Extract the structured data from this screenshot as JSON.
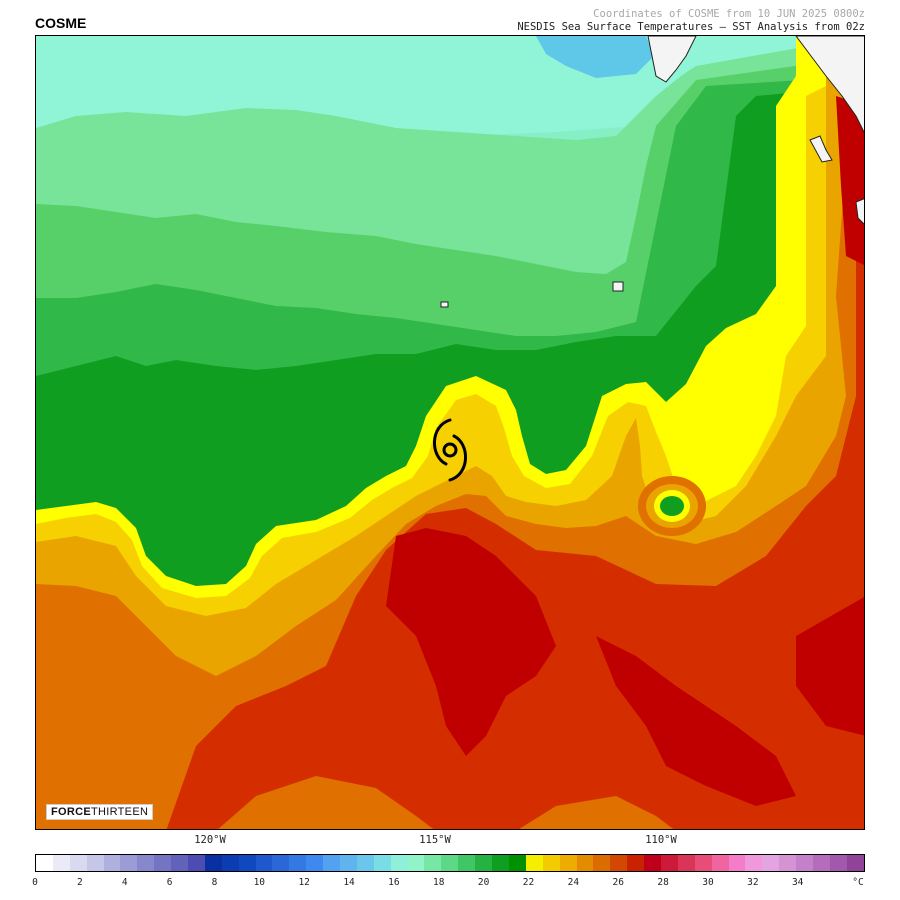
{
  "storm_name": "COSME",
  "header": {
    "line1": "Coordinates of COSME from 10 JUN 2025 0800z",
    "line2": "NESDIS Sea Surface Temperatures – SST Analysis from 02z"
  },
  "logo": {
    "bold": "FORCE",
    "light": "THIRTEEN"
  },
  "longitude_labels": [
    "120°W",
    "115°W",
    "110°W"
  ],
  "colorbar": {
    "unit": "°C",
    "tick_labels": [
      "0",
      "2",
      "4",
      "6",
      "8",
      "10",
      "12",
      "14",
      "16",
      "18",
      "20",
      "22",
      "24",
      "26",
      "28",
      "30",
      "32",
      "34"
    ],
    "colors": [
      "#ffffff",
      "#ebebf7",
      "#d9d9f0",
      "#c6c6e8",
      "#b0b0df",
      "#9b9bd6",
      "#8787cc",
      "#7474c2",
      "#6262b8",
      "#4c4cb2",
      "#0a2fa0",
      "#0c3cb2",
      "#1048c0",
      "#1e58cc",
      "#2a68d8",
      "#3478e4",
      "#3f89ee",
      "#52a2f0",
      "#5fb4ee",
      "#6ac6ea",
      "#7adce4",
      "#8ef0d8",
      "#92f2c8",
      "#78e6a4",
      "#5cd886",
      "#40c664",
      "#26b240",
      "#109e20",
      "#009000",
      "#f6ee00",
      "#f2cc00",
      "#eeac00",
      "#e48c00",
      "#dc6c00",
      "#d24800",
      "#c82200",
      "#c0001a",
      "#cc1a38",
      "#da3456",
      "#e84c78",
      "#f064a0",
      "#f47cc8",
      "#f098dc",
      "#e4a4e0",
      "#d494d4",
      "#c480c8",
      "#b46cbc",
      "#a258ac",
      "#904498"
    ]
  },
  "storm_symbol": "tropical-storm-icon",
  "colors": {
    "warm_deep": "#c00000",
    "warm_red": "#d42e00",
    "warm_orange": "#e07000",
    "amber": "#eaa400",
    "gold": "#f6d000",
    "yellow": "#ffff00",
    "green_dark": "#109e20",
    "green_mid": "#30b848",
    "green_light": "#58d06a",
    "mint": "#78e49a",
    "aqua_mint": "#86efc6",
    "aqua": "#8ff5d6",
    "sky": "#5fc8e8",
    "land": "#f4f4f4"
  }
}
